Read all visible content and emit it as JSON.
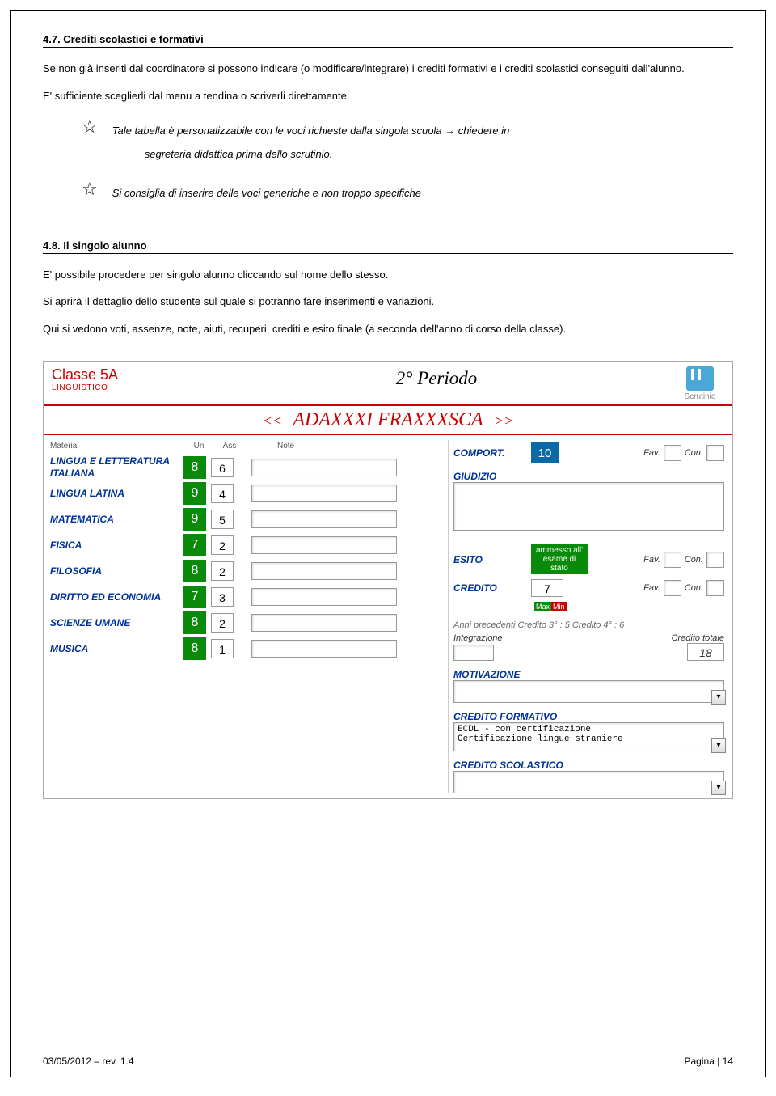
{
  "section47": {
    "title": "4.7. Crediti scolastici e formativi",
    "p1": "Se non già inseriti dal coordinatore si possono indicare (o modificare/integrare) i crediti formativi e i crediti scolastici conseguiti dall'alunno.",
    "p2": "E' sufficiente sceglierli dal menu a tendina o scriverli direttamente.",
    "star1a": "Tale tabella è personalizzabile con le voci richieste dalla singola scuola → chiedere in",
    "star1b": "segreteria didattica prima dello scrutinio.",
    "star2": "Si consiglia di inserire delle voci generiche e non troppo specifiche"
  },
  "section48": {
    "title": "4.8. Il singolo alunno",
    "p1": "E' possibile procedere per singolo alunno cliccando sul nome dello stesso.",
    "p2": "Si aprirà il dettaglio dello studente sul quale si potranno fare inserimenti e variazioni.",
    "p3": "Qui si vedono voti, assenze, note, aiuti, recuperi, crediti e esito finale (a seconda dell'anno di corso della classe)."
  },
  "ui": {
    "classe": "Classe 5A",
    "indirizzo": "LINGUISTICO",
    "periodo": "2° Periodo",
    "scrutinio_label": "Scrutinio",
    "nav_prev": "<<",
    "nav_next": ">>",
    "student": "ADAXXXI FRAXXXSCA",
    "headers": {
      "materia": "Materia",
      "un": "Un",
      "ass": "Ass",
      "note": "Note"
    },
    "grades": [
      {
        "materia": "LINGUA E LETTERATURA ITALIANA",
        "un": "8",
        "ass": "6"
      },
      {
        "materia": "LINGUA LATINA",
        "un": "9",
        "ass": "4"
      },
      {
        "materia": "MATEMATICA",
        "un": "9",
        "ass": "5"
      },
      {
        "materia": "FISICA",
        "un": "7",
        "ass": "2"
      },
      {
        "materia": "FILOSOFIA",
        "un": "8",
        "ass": "2"
      },
      {
        "materia": "DIRITTO ED ECONOMIA",
        "un": "7",
        "ass": "3"
      },
      {
        "materia": "SCIENZE UMANE",
        "un": "8",
        "ass": "2"
      },
      {
        "materia": "MUSICA",
        "un": "8",
        "ass": "1"
      }
    ],
    "right": {
      "comport_label": "COMPORT.",
      "comport_val": "10",
      "fav": "Fav.",
      "con": "Con.",
      "giudizio_label": "GIUDIZIO",
      "esito_label": "ESITO",
      "esito_val": "ammesso all' esame di stato",
      "credito_label": "CREDITO",
      "credito_val": "7",
      "max": "Max",
      "min": "Min",
      "anni_prec": "Anni precedenti  Credito 3° : 5 Credito 4° : 6",
      "integrazione": "Integrazione",
      "cred_totale_label": "Credito totale",
      "cred_totale": "18",
      "motivazione_label": "MOTIVAZIONE",
      "cred_form_label": "CREDITO FORMATIVO",
      "cred_form_text": "ECDL - con certificazione\nCertificazione lingue straniere",
      "cred_scol_label": "CREDITO SCOLASTICO"
    }
  },
  "footer": {
    "left": "03/05/2012 – rev. 1.4",
    "right": "Pagina  | 14"
  }
}
